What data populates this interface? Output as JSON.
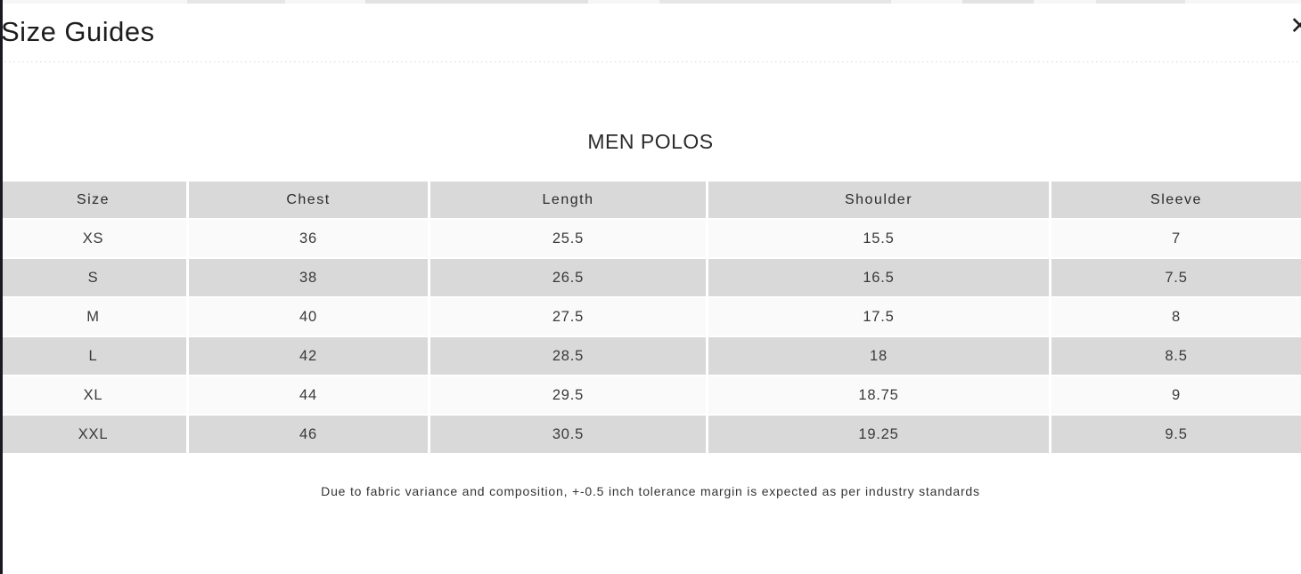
{
  "modal": {
    "title": "Size Guides"
  },
  "icons": {
    "close": "✕"
  },
  "section": {
    "title": "MEN POLOS"
  },
  "table": {
    "columns": [
      "Size",
      "Chest",
      "Length",
      "Shoulder",
      "Sleeve"
    ],
    "rows": [
      {
        "cells": [
          "XS",
          "36",
          "25.5",
          "15.5",
          "7"
        ]
      },
      {
        "cells": [
          "S",
          "38",
          "26.5",
          "16.5",
          "7.5"
        ]
      },
      {
        "cells": [
          "M",
          "40",
          "27.5",
          "17.5",
          "8"
        ]
      },
      {
        "cells": [
          "L",
          "42",
          "28.5",
          "18",
          "8.5"
        ]
      },
      {
        "cells": [
          "XL",
          "44",
          "29.5",
          "18.75",
          "9"
        ]
      },
      {
        "cells": [
          "XXL",
          "46",
          "30.5",
          "19.25",
          "9.5"
        ]
      }
    ]
  },
  "note": "Due to fabric variance and composition, +-0.5 inch tolerance margin is expected as per industry standards",
  "colors": {
    "row_gray": "#d9d9d9",
    "row_light": "#fafafa",
    "text_dark": "#1d1d1d",
    "overlay_edge": "#191920"
  }
}
